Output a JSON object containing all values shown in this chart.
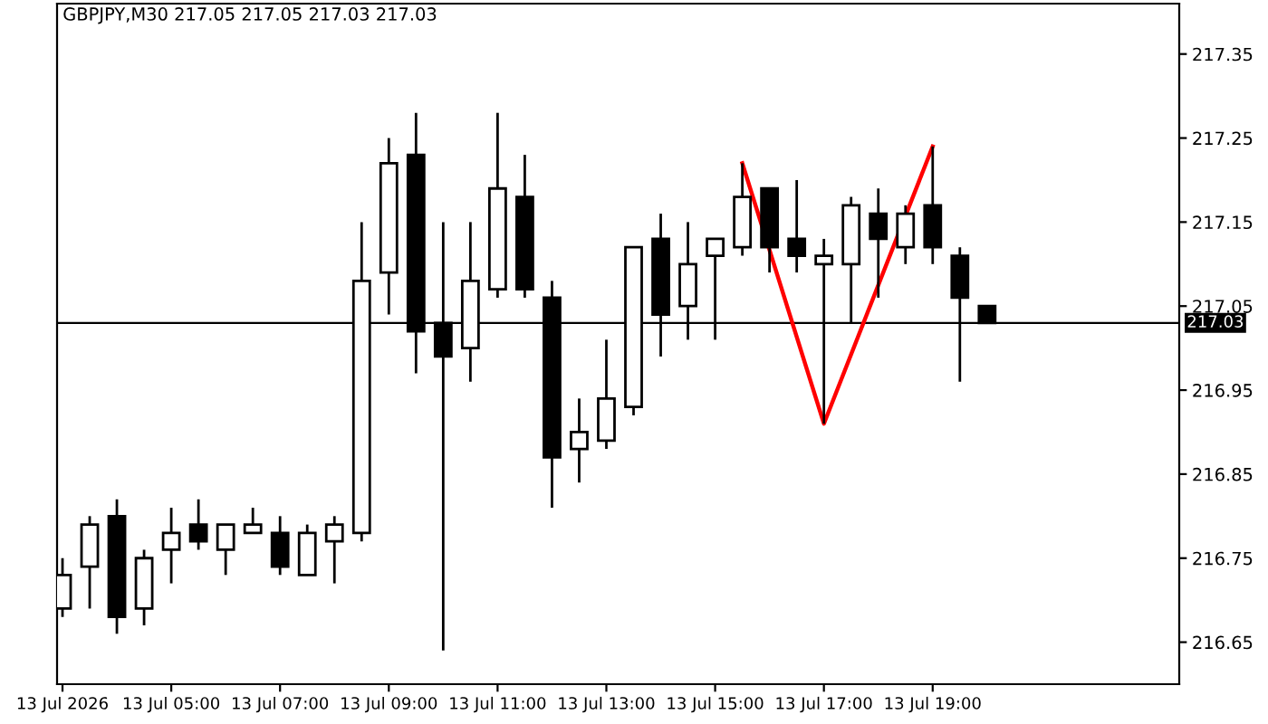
{
  "chart_data": {
    "type": "candlestick",
    "title": "GBPJPY,M30 217.05 217.05 217.03 217.03",
    "x": [
      "2026-07-13T03:00",
      "2026-07-13T03:30",
      "2026-07-13T04:00",
      "2026-07-13T04:30",
      "2026-07-13T05:00",
      "2026-07-13T05:30",
      "2026-07-13T06:00",
      "2026-07-13T06:30",
      "2026-07-13T07:00",
      "2026-07-13T07:30",
      "2026-07-13T08:00",
      "2026-07-13T08:30",
      "2026-07-13T09:00",
      "2026-07-13T09:30",
      "2026-07-13T10:00",
      "2026-07-13T10:30",
      "2026-07-13T11:00",
      "2026-07-13T11:30",
      "2026-07-13T12:00",
      "2026-07-13T12:30",
      "2026-07-13T13:00",
      "2026-07-13T13:30",
      "2026-07-13T14:00",
      "2026-07-13T14:30",
      "2026-07-13T15:00",
      "2026-07-13T15:30",
      "2026-07-13T16:00",
      "2026-07-13T16:30",
      "2026-07-13T17:00",
      "2026-07-13T17:30",
      "2026-07-13T18:00",
      "2026-07-13T18:30",
      "2026-07-13T19:00",
      "2026-07-13T19:30",
      "2026-07-13T20:00"
    ],
    "ohlc": [
      [
        216.69,
        216.75,
        216.68,
        216.73
      ],
      [
        216.74,
        216.8,
        216.69,
        216.79
      ],
      [
        216.8,
        216.82,
        216.66,
        216.68
      ],
      [
        216.69,
        216.76,
        216.67,
        216.75
      ],
      [
        216.76,
        216.81,
        216.72,
        216.78
      ],
      [
        216.79,
        216.82,
        216.76,
        216.77
      ],
      [
        216.76,
        216.79,
        216.73,
        216.79
      ],
      [
        216.78,
        216.81,
        216.78,
        216.79
      ],
      [
        216.78,
        216.8,
        216.73,
        216.74
      ],
      [
        216.73,
        216.79,
        216.73,
        216.78
      ],
      [
        216.77,
        216.8,
        216.72,
        216.79
      ],
      [
        216.78,
        217.15,
        216.77,
        217.08
      ],
      [
        217.09,
        217.25,
        217.04,
        217.22
      ],
      [
        217.23,
        217.28,
        216.97,
        217.02
      ],
      [
        217.03,
        217.15,
        216.64,
        216.99
      ],
      [
        217.0,
        217.15,
        216.96,
        217.08
      ],
      [
        217.07,
        217.28,
        217.06,
        217.19
      ],
      [
        217.18,
        217.23,
        217.06,
        217.07
      ],
      [
        217.06,
        217.08,
        216.81,
        216.87
      ],
      [
        216.88,
        216.94,
        216.84,
        216.9
      ],
      [
        216.89,
        217.01,
        216.88,
        216.94
      ],
      [
        216.93,
        217.12,
        216.92,
        217.12
      ],
      [
        217.13,
        217.16,
        216.99,
        217.04
      ],
      [
        217.05,
        217.15,
        217.01,
        217.1
      ],
      [
        217.11,
        217.13,
        217.01,
        217.13
      ],
      [
        217.12,
        217.22,
        217.11,
        217.18
      ],
      [
        217.19,
        217.19,
        217.09,
        217.12
      ],
      [
        217.13,
        217.2,
        217.09,
        217.11
      ],
      [
        217.1,
        217.13,
        216.91,
        217.11
      ],
      [
        217.1,
        217.18,
        217.03,
        217.17
      ],
      [
        217.16,
        217.19,
        217.06,
        217.13
      ],
      [
        217.12,
        217.17,
        217.1,
        217.16
      ],
      [
        217.17,
        217.24,
        217.1,
        217.12
      ],
      [
        217.11,
        217.12,
        216.96,
        217.06
      ],
      [
        217.05,
        217.05,
        217.03,
        217.03
      ]
    ],
    "series": [
      {
        "type": "line",
        "color": "#ff0000",
        "x": [
          "2026-07-13T15:30",
          "2026-07-13T17:00",
          "2026-07-13T19:00"
        ],
        "values": [
          217.22,
          216.91,
          217.24
        ]
      }
    ],
    "xlim": [
      "2026-07-13T02:54",
      "2026-07-13T23:32"
    ],
    "xticks": [
      {
        "value": "2026-07-13T03:00",
        "label": "13 Jul 2026"
      },
      {
        "value": "2026-07-13T05:00",
        "label": "13 Jul 05:00"
      },
      {
        "value": "2026-07-13T07:00",
        "label": "13 Jul 07:00"
      },
      {
        "value": "2026-07-13T09:00",
        "label": "13 Jul 09:00"
      },
      {
        "value": "2026-07-13T11:00",
        "label": "13 Jul 11:00"
      },
      {
        "value": "2026-07-13T13:00",
        "label": "13 Jul 13:00"
      },
      {
        "value": "2026-07-13T15:00",
        "label": "13 Jul 15:00"
      },
      {
        "value": "2026-07-13T17:00",
        "label": "13 Jul 17:00"
      },
      {
        "value": "2026-07-13T19:00",
        "label": "13 Jul 19:00"
      }
    ],
    "ylim": [
      216.6,
      217.41
    ],
    "yticks": [
      216.65,
      216.75,
      216.85,
      216.95,
      217.05,
      217.15,
      217.25,
      217.35
    ],
    "ref_lines": [
      {
        "axis": "y",
        "value": 217.03,
        "label": "217.03",
        "color": "#000000"
      }
    ],
    "grid": false
  }
}
